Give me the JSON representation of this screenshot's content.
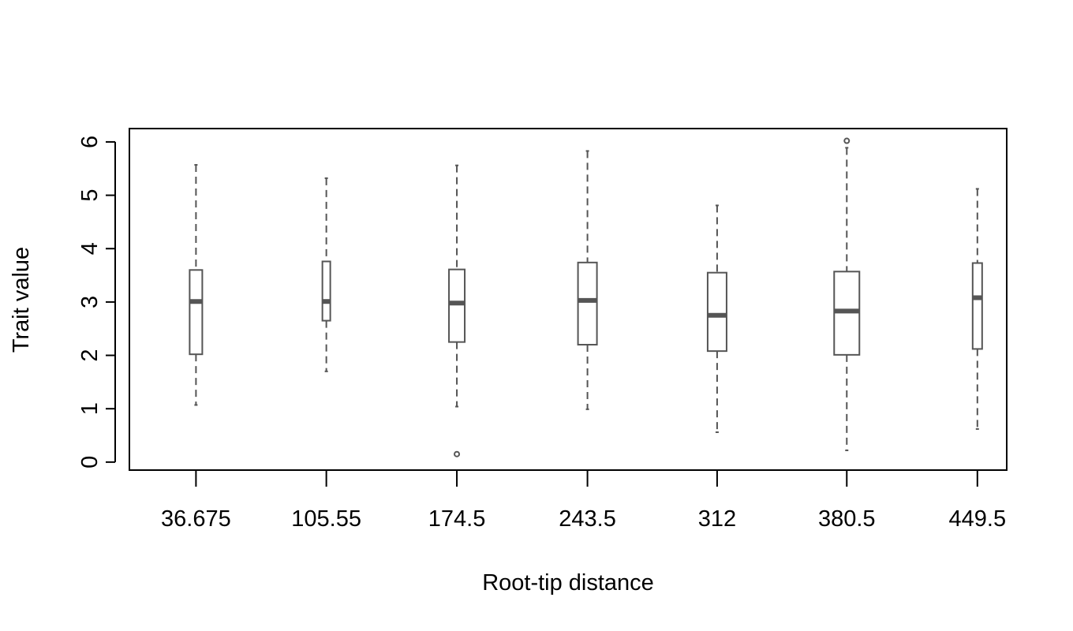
{
  "chart_data": {
    "type": "boxplot",
    "title": "",
    "xlabel": "Root-tip distance",
    "ylabel": "Trait value",
    "ylim": [
      -0.15,
      6.25
    ],
    "yticks": [
      0,
      1,
      2,
      3,
      4,
      5,
      6
    ],
    "ytick_labels": [
      "0",
      "1",
      "2",
      "3",
      "4",
      "5",
      "6"
    ],
    "categories": [
      "36.675",
      "105.55",
      "174.5",
      "243.5",
      "312",
      "380.5",
      "449.5"
    ],
    "x": [
      36.675,
      105.55,
      174.5,
      243.5,
      312,
      380.5,
      449.5
    ],
    "xlim": [
      1.5,
      465
    ],
    "boxes": [
      {
        "label": "36.675",
        "low": 1.07,
        "q1": 2.02,
        "median": 3.01,
        "q3": 3.6,
        "high": 5.57,
        "outliers": []
      },
      {
        "label": "105.55",
        "low": 1.7,
        "q1": 2.65,
        "median": 3.01,
        "q3": 3.76,
        "high": 5.32,
        "outliers": []
      },
      {
        "label": "174.5",
        "low": 1.04,
        "q1": 2.25,
        "median": 2.98,
        "q3": 3.61,
        "high": 5.56,
        "outliers": [
          0.15
        ]
      },
      {
        "label": "243.5",
        "low": 0.99,
        "q1": 2.2,
        "median": 3.03,
        "q3": 3.74,
        "high": 5.83,
        "outliers": []
      },
      {
        "label": "312",
        "low": 0.56,
        "q1": 2.08,
        "median": 2.75,
        "q3": 3.55,
        "high": 4.81,
        "outliers": []
      },
      {
        "label": "380.5",
        "low": 0.22,
        "q1": 2.01,
        "median": 2.83,
        "q3": 3.57,
        "high": 5.89,
        "outliers": [
          6.02
        ]
      },
      {
        "label": "449.5",
        "low": 0.62,
        "q1": 2.12,
        "median": 3.08,
        "q3": 3.73,
        "high": 5.12,
        "outliers": []
      }
    ],
    "grid": false,
    "legend": "none"
  }
}
